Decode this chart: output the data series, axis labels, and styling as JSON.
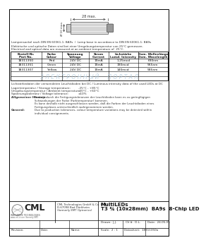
{
  "title": "MultiLEDs",
  "subtitle": "T3 ¾ (10x28mm)  BA9s  8-Chip LED",
  "company_name": "CML Technologies GmbH & Co. KG",
  "company_addr1": "D-67098 Bad Dürkheim",
  "company_addr2": "(formerly EMT Optronics)",
  "lamp_base_text": "Lampensockel nach DIN EN 60061-1: BA9s  /  Lamp base in accordance to DIN EN 60061-1: BA9s",
  "elec_text_de": "Elektrische und optische Daten sind bei einer Umgebungstemperatur von 25°C gemessen.",
  "elec_text_en": "Electrical and optical data are measured at an ambient temperature of  25°C.",
  "table_headers_line1": [
    "Bestell-Nr.",
    "Farbe",
    "Spannung",
    "Strom",
    "Lichstärke",
    "Dom. Wellenlänge"
  ],
  "table_headers_line2": [
    "Part No.",
    "Colour",
    "Voltage",
    "Current",
    "Lumd. Intensity",
    "Dom. Wavelength"
  ],
  "table_data": [
    [
      "18311350",
      "Red",
      "24V DC",
      "19mA",
      "1.25mcd",
      "630nm"
    ],
    [
      "18311351",
      "Green",
      "24V DC",
      "19mA",
      "190mcd",
      "565nm"
    ],
    [
      "18311307",
      "Yellow",
      "24V DC",
      "19mA",
      "140mcd",
      "585nm"
    ]
  ],
  "lumi_text": "Lichstärkedaten der verwendeten Leuchtdioden bei DC / Luminous intensity data of the used LEDs at DC",
  "storage_temp_label": "Lagertemperatur / Storage temperature:",
  "storage_temp_val": "-25°C - +85°C",
  "ambient_temp_label": "Umgebungstemperatur / Ambient temperature:",
  "ambient_temp_val": "-20°C - +60°C",
  "voltage_tol_label": "Spannungstoleranz / Voltage tolerance:",
  "voltage_tol_val": "±10%",
  "allg_label": "Allgemeiner Hinweis:",
  "allg_text": "Bedingt durch die Fertigungstoleranzen der Leuchtdioden kann es zu geringfügigen\nSchwankungen der Farbe (Farbtemperatur) kommen.\nEs kann deshalb nicht ausgeschlossen werden, daß die Farben der Leuchtdioden eines\nFertigungsloses unterschiedlich wahrgenommen werden.",
  "general_label": "General:",
  "general_text": "Due to production tolerances, colour temperature variations may be detected within\nindividual consignments.",
  "drawn_label": "Drawn:",
  "drawn_val": "J.J.",
  "chkd_label": "Ch’d:",
  "chkd_val": "D.L.",
  "date_label": "Date:",
  "date_val": "24.05.05",
  "scale_label": "Scale:",
  "scale_val": "2 : 1",
  "datasheet_label": "Datasheet:",
  "datasheet_val": "18311350a",
  "revision_label": "Revision:",
  "date_label2": "Date:",
  "name_label": "Name:",
  "watermark_text": "З Л Е К Т Р О Н Н Ы Й     П О Р Т А Л",
  "bg_color": "#ffffff",
  "border_color": "#000000",
  "dim_text": "28 max.",
  "dim_dia": "Ø 10 max.",
  "col_widths_rel": [
    38,
    25,
    32,
    24,
    36,
    36
  ]
}
